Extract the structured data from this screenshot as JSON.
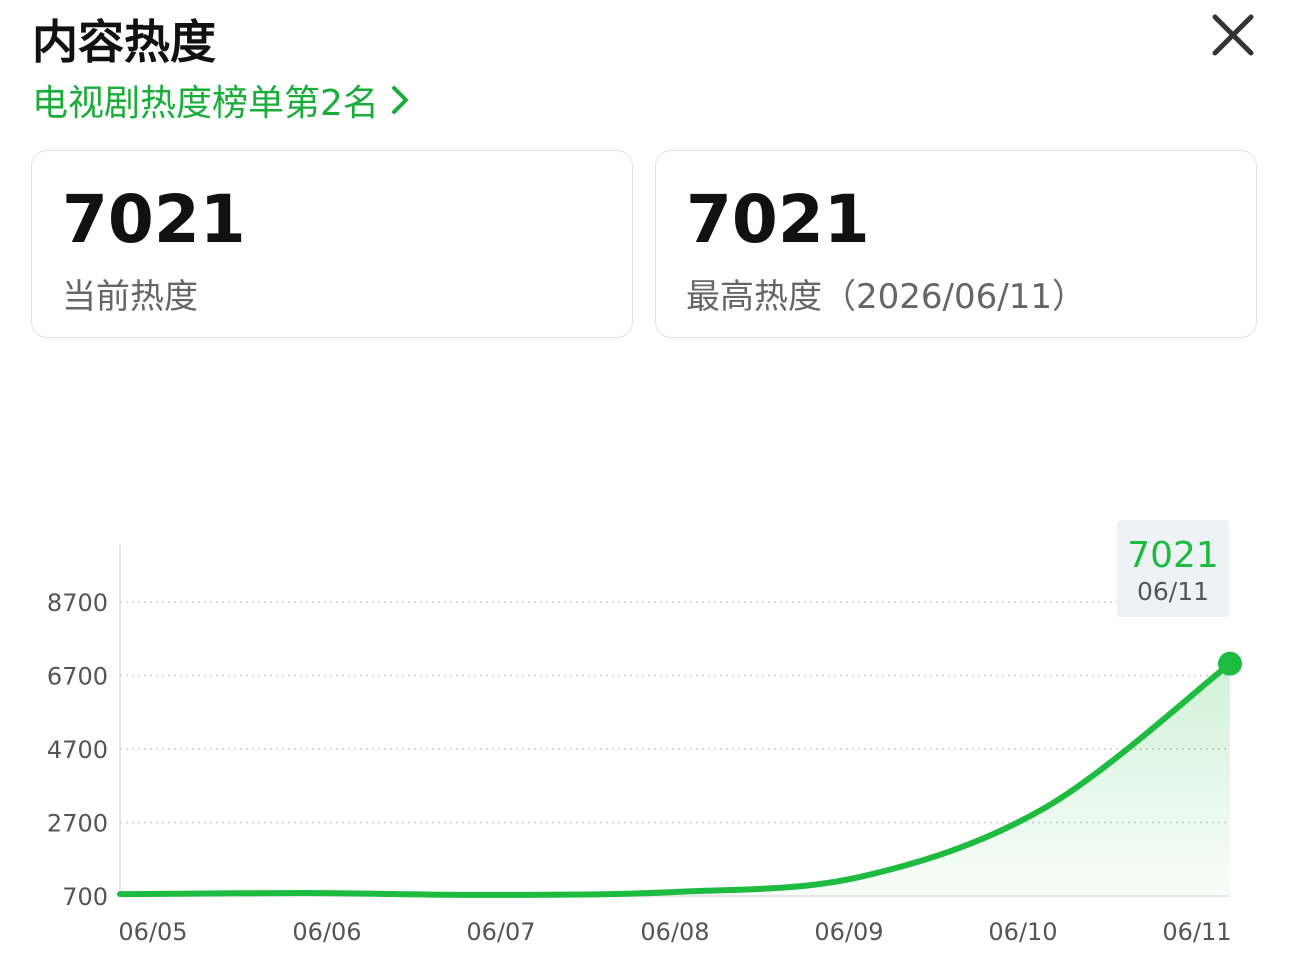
{
  "header": {
    "title": "内容热度",
    "rank_link": "电视剧热度榜单第2名"
  },
  "cards": [
    {
      "value": 7021,
      "label": "当前热度"
    },
    {
      "value": 7021,
      "label": "最高热度（2026/06/11）"
    }
  ],
  "chart_data": {
    "type": "line",
    "categories": [
      "06/05",
      "06/06",
      "06/07",
      "06/08",
      "06/09",
      "06/10",
      "06/11"
    ],
    "series": [
      {
        "name": "热度",
        "color": "#1dbb3f",
        "values": [
          750,
          780,
          730,
          810,
          1220,
          3100,
          7021
        ]
      }
    ],
    "ylim": [
      700,
      10250
    ],
    "yticks": [
      700,
      2700,
      4700,
      6700,
      8700
    ],
    "grid": true
  }
}
